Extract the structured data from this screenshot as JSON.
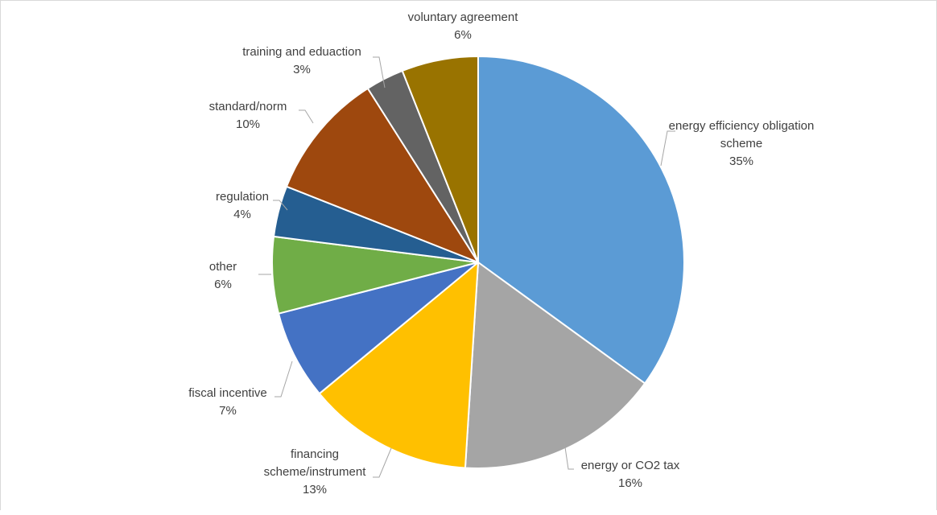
{
  "chart_data": {
    "type": "pie",
    "title": "",
    "start_angle_deg": 0,
    "direction": "clockwise",
    "slices": [
      {
        "lines": [
          "energy efficiency obligation",
          "scheme"
        ],
        "pct_label": "35%",
        "value": 35,
        "color": "#5b9bd5"
      },
      {
        "lines": [
          "energy or CO2 tax"
        ],
        "pct_label": "16%",
        "value": 16,
        "color": "#a5a5a5"
      },
      {
        "lines": [
          "financing",
          "scheme/instrument"
        ],
        "pct_label": "13%",
        "value": 13,
        "color": "#ffc000"
      },
      {
        "lines": [
          "fiscal incentive"
        ],
        "pct_label": "7%",
        "value": 7,
        "color": "#4472c4"
      },
      {
        "lines": [
          "other"
        ],
        "pct_label": "6%",
        "value": 6,
        "color": "#70ad47"
      },
      {
        "lines": [
          "regulation"
        ],
        "pct_label": "4%",
        "value": 4,
        "color": "#255e91"
      },
      {
        "lines": [
          "standard/norm"
        ],
        "pct_label": "10%",
        "value": 10,
        "color": "#9e480e"
      },
      {
        "lines": [
          "training and eduaction"
        ],
        "pct_label": "3%",
        "value": 3,
        "color": "#636363"
      },
      {
        "lines": [
          "voluntary agreement"
        ],
        "pct_label": "6%",
        "value": 6,
        "color": "#997300"
      }
    ],
    "slice_border_color": "#ffffff",
    "leader_line_color": "#a6a6a6",
    "label_color": "#404040"
  }
}
